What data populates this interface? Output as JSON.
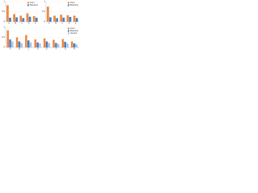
{
  "chart_data": [
    {
      "type": "bar",
      "categories": [
        "A",
        "B",
        "C",
        "D",
        "E"
      ],
      "series": [
        {
          "name": "Ours",
          "color": "#f0883e",
          "values": [
            0.82,
            0.38,
            0.3,
            0.42,
            0.28
          ]
        },
        {
          "name": "Baseline",
          "color": "#4a7fc1",
          "values": [
            0.2,
            0.22,
            0.18,
            0.25,
            0.2
          ]
        }
      ],
      "ylim": [
        0,
        1
      ],
      "yticks": [
        0,
        0.5,
        1
      ],
      "grid": true,
      "legend": "upper-right"
    },
    {
      "type": "bar",
      "categories": [
        "A",
        "B",
        "C",
        "D",
        "E"
      ],
      "series": [
        {
          "name": "Ours",
          "color": "#f0883e",
          "values": [
            0.75,
            0.3,
            0.35,
            0.32,
            0.3
          ]
        },
        {
          "name": "Baseline",
          "color": "#4a7fc1",
          "values": [
            0.22,
            0.18,
            0.2,
            0.24,
            0.18
          ]
        }
      ],
      "ylim": [
        0,
        1
      ],
      "yticks": [
        0,
        0.5,
        1
      ],
      "grid": true,
      "legend": "upper-right"
    },
    {
      "type": "bar",
      "categories": [
        "A",
        "B",
        "C",
        "D",
        "E",
        "F",
        "G",
        "H"
      ],
      "series": [
        {
          "name": "Ours",
          "color": "#f0883e",
          "values": [
            0.85,
            0.5,
            0.62,
            0.4,
            0.45,
            0.38,
            0.42,
            0.3
          ]
        },
        {
          "name": "Baseline",
          "color": "#4a7fc1",
          "values": [
            0.4,
            0.3,
            0.35,
            0.25,
            0.3,
            0.22,
            0.28,
            0.2
          ]
        },
        {
          "name": "Variant",
          "color": "#a9c6e8",
          "values": [
            0.3,
            0.22,
            0.25,
            0.2,
            0.22,
            0.18,
            0.2,
            0.15
          ]
        }
      ],
      "ylim": [
        0,
        1
      ],
      "yticks": [
        0,
        0.5,
        1
      ],
      "grid": true,
      "legend": "upper-right"
    }
  ]
}
